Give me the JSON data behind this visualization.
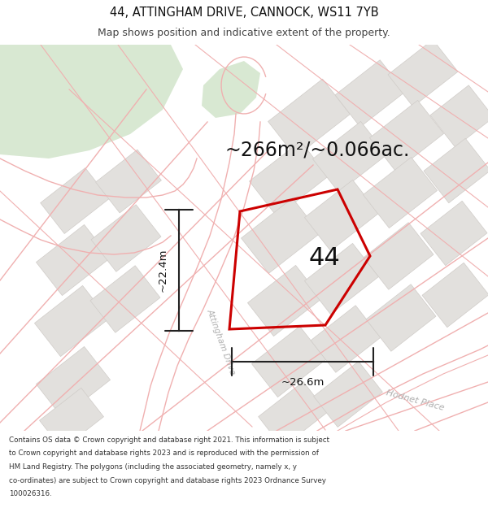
{
  "title_line1": "44, ATTINGHAM DRIVE, CANNOCK, WS11 7YB",
  "title_line2": "Map shows position and indicative extent of the property.",
  "area_text": "~266m²/~0.066ac.",
  "label_44": "44",
  "dim_width": "~26.6m",
  "dim_height": "~22.4m",
  "road_label": "Attingham Drive",
  "road_label2": "Hodnet Place",
  "footer_lines": [
    "Contains OS data © Crown copyright and database right 2021. This information is subject",
    "to Crown copyright and database rights 2023 and is reproduced with the permission of",
    "HM Land Registry. The polygons (including the associated geometry, namely x, y",
    "co-ordinates) are subject to Crown copyright and database rights 2023 Ordnance Survey",
    "100026316."
  ],
  "map_bg": "#f8f7f5",
  "block_fill": "#e2e0dd",
  "block_edge": "#d0ccc8",
  "green_fill": "#d8e8d2",
  "road_line": "#f0b0b0",
  "road_line2": "#e8a0a0",
  "plot_outline": "#cc0000",
  "dim_color": "#222222",
  "text_dark": "#111111",
  "text_gray": "#aaaaaa",
  "footer_color": "#333333",
  "header_bg": "#ffffff",
  "map_header_bg": "#f8f7f5"
}
